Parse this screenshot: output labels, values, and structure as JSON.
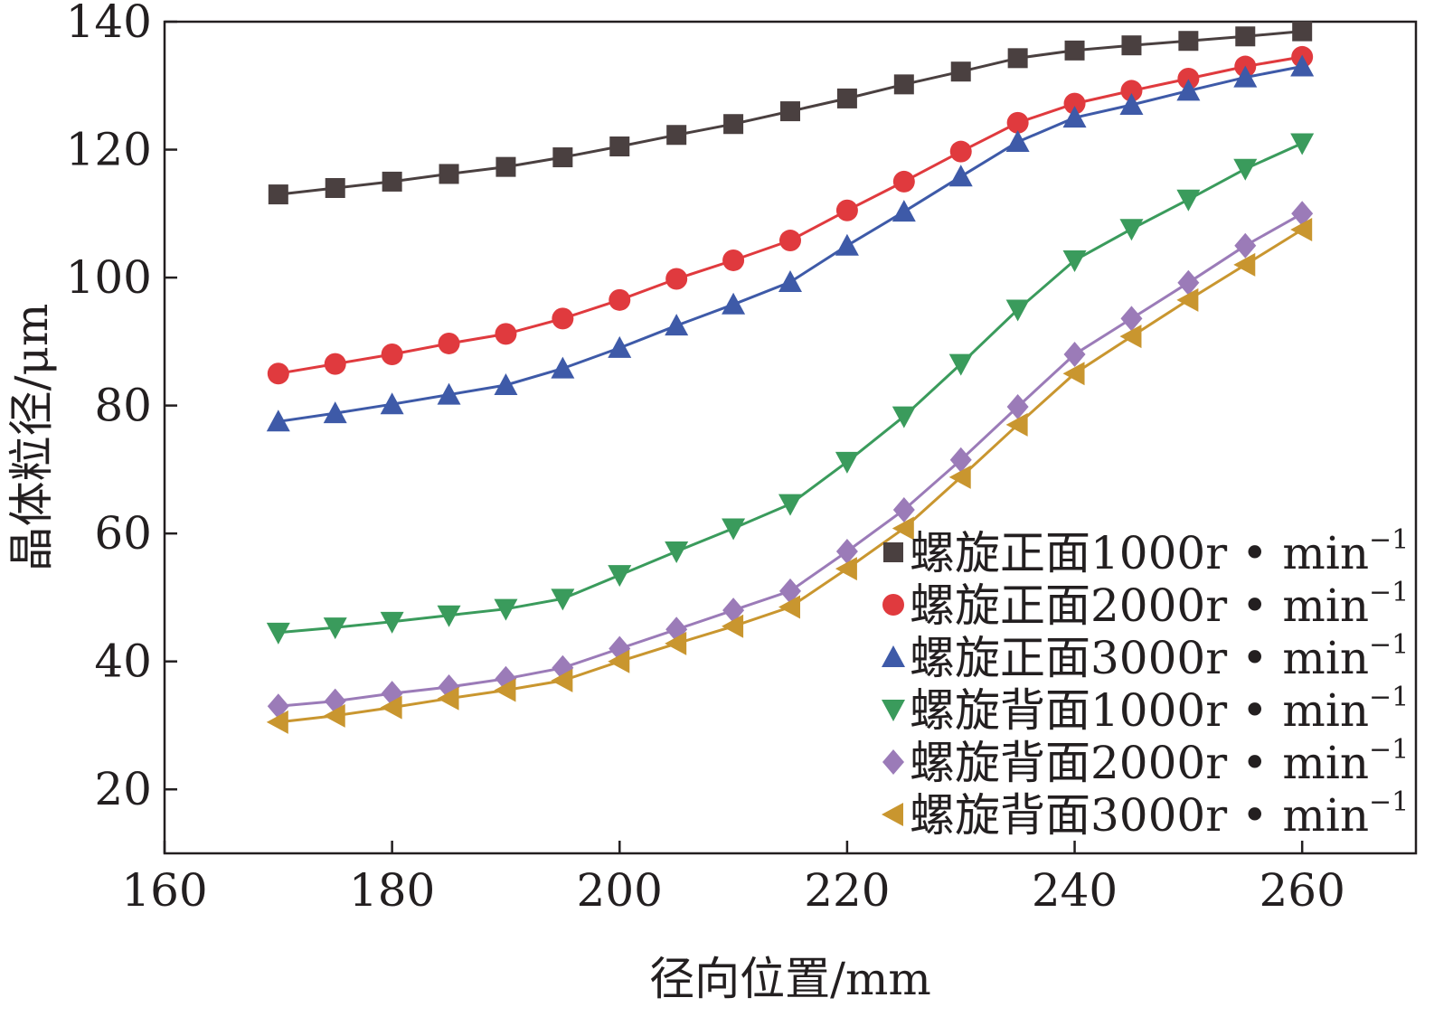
{
  "chart_data": {
    "type": "line",
    "title": "",
    "xlabel": "径向位置/mm",
    "ylabel": "晶体粒径/μm",
    "xlim": [
      160,
      270
    ],
    "ylim": [
      10,
      140
    ],
    "xticks": [
      160,
      180,
      200,
      220,
      240,
      260
    ],
    "yticks": [
      20,
      40,
      60,
      80,
      100,
      120,
      140
    ],
    "grid": false,
    "legend_position": "bottom-right",
    "x": [
      170,
      175,
      180,
      185,
      190,
      195,
      200,
      205,
      210,
      215,
      220,
      225,
      230,
      235,
      240,
      245,
      250,
      255,
      260
    ],
    "series": [
      {
        "name": "螺旋正面1000r・min⁻¹",
        "legend_main": "螺旋正面1000r",
        "legend_unit": " • min",
        "legend_sup": "−1",
        "marker": "square",
        "color": "#4a4040",
        "values": [
          113,
          114,
          115,
          116.2,
          117.3,
          118.8,
          120.5,
          122.3,
          124,
          126,
          128,
          130.2,
          132.2,
          134.3,
          135.5,
          136.3,
          137,
          137.7,
          138.5
        ]
      },
      {
        "name": "螺旋正面2000r・min⁻¹",
        "legend_main": "螺旋正面2000r",
        "legend_unit": " • min",
        "legend_sup": "−1",
        "marker": "circle",
        "color": "#e03a3e",
        "values": [
          85,
          86.5,
          88,
          89.7,
          91.2,
          93.6,
          96.5,
          99.8,
          102.7,
          105.8,
          110.5,
          115,
          119.7,
          124.2,
          127.2,
          129.2,
          131.1,
          133,
          134.5
        ]
      },
      {
        "name": "螺旋正面3000r・min⁻¹",
        "legend_main": "螺旋正面3000r",
        "legend_unit": " • min",
        "legend_sup": "−1",
        "marker": "triangle-up",
        "color": "#3e5aa8",
        "values": [
          77.5,
          78.8,
          80.2,
          81.7,
          83.2,
          85.8,
          89,
          92.5,
          95.8,
          99.3,
          105,
          110.3,
          115.8,
          121.2,
          125,
          127,
          129.2,
          131.3,
          133
        ]
      },
      {
        "name": "螺旋背面1000r・min⁻¹",
        "legend_main": "螺旋背面1000r",
        "legend_unit": " • min",
        "legend_sup": "−1",
        "marker": "triangle-down",
        "color": "#3a9b5c",
        "values": [
          44.5,
          45.3,
          46.2,
          47.2,
          48.2,
          49.8,
          53.5,
          57.2,
          60.8,
          64.6,
          71.2,
          78.3,
          86.5,
          95,
          102.7,
          107.6,
          112.2,
          117,
          121
        ]
      },
      {
        "name": "螺旋背面2000r・min⁻¹",
        "legend_main": "螺旋背面2000r",
        "legend_unit": " • min",
        "legend_sup": "−1",
        "marker": "diamond",
        "color": "#9b7bb8",
        "values": [
          33,
          33.8,
          35,
          36,
          37.3,
          39,
          42,
          45,
          48,
          51,
          57.2,
          63.7,
          71.5,
          79.8,
          88,
          93.6,
          99.2,
          105,
          110
        ]
      },
      {
        "name": "螺旋背面3000r・min⁻¹",
        "legend_main": "螺旋背面3000r",
        "legend_unit": " • min",
        "legend_sup": "−1",
        "marker": "triangle-left",
        "color": "#c9962f",
        "values": [
          30.5,
          31.5,
          32.8,
          34.2,
          35.5,
          37,
          40,
          42.8,
          45.5,
          48.5,
          54.5,
          60.8,
          68.8,
          77,
          85,
          90.8,
          96.5,
          102,
          107.5
        ]
      }
    ]
  }
}
